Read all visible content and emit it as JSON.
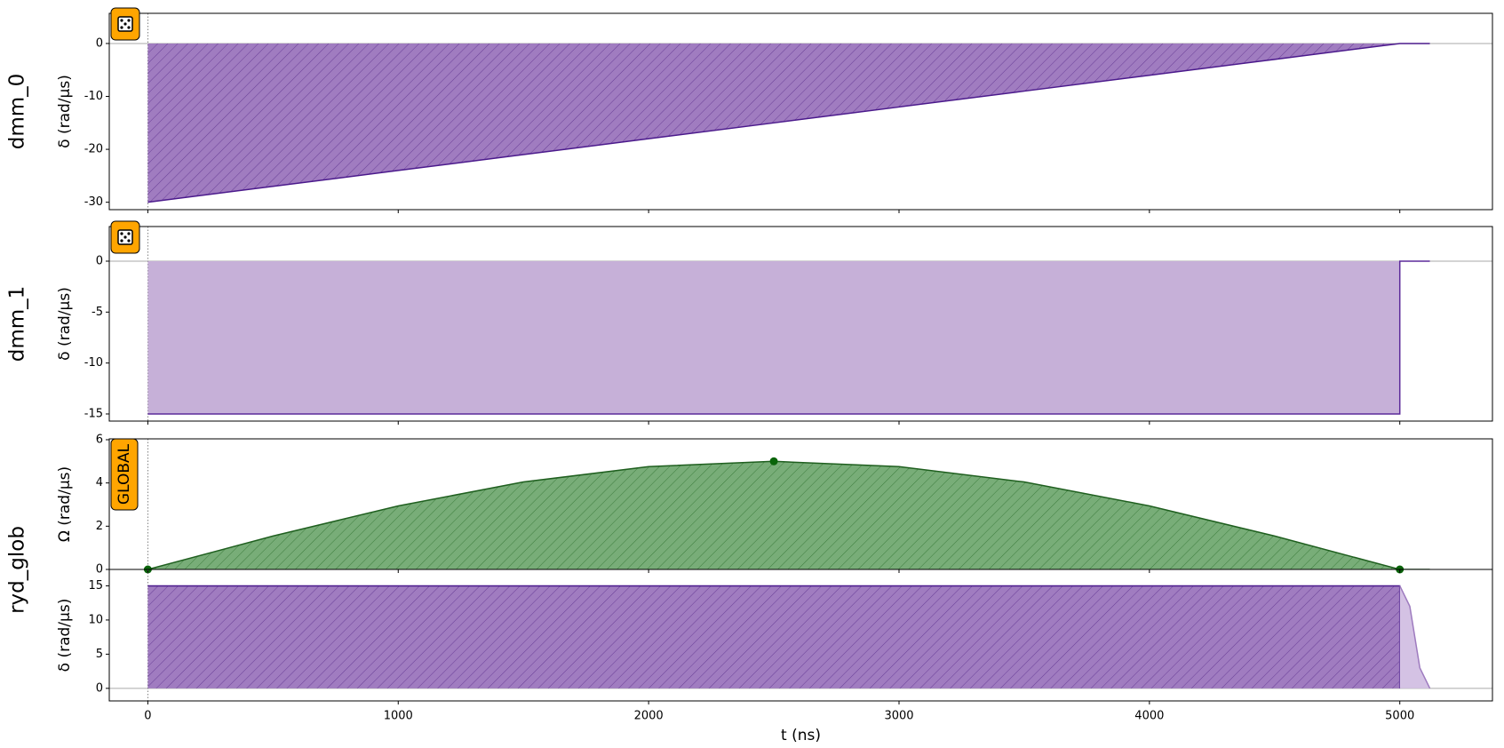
{
  "chart_data": [
    {
      "type": "area",
      "row_label": "dmm_0",
      "ylabel": "δ (rad/µs)",
      "badge": "dice",
      "hatch": true,
      "ylim": [
        -31.4,
        5.7
      ],
      "yticks": [
        -30,
        -20,
        -10,
        0
      ],
      "series": [
        {
          "color": "#4b1a8c",
          "fill": "#a07cc0",
          "x": [
            0,
            500,
            1000,
            1500,
            2000,
            2500,
            3000,
            3500,
            4000,
            4500,
            5000,
            5120
          ],
          "values": [
            -30,
            -27,
            -24,
            -21,
            -18,
            -15,
            -12,
            -9,
            -6,
            -3,
            0,
            0
          ]
        }
      ]
    },
    {
      "type": "area",
      "row_label": "dmm_1",
      "ylabel": "δ (rad/µs)",
      "badge": "dice",
      "hatch": false,
      "ylim": [
        -15.7,
        3.4
      ],
      "yticks": [
        -15,
        -10,
        -5,
        0
      ],
      "series": [
        {
          "color": "#5b2a9a",
          "fill": "#c6b0d8",
          "x": [
            0,
            5000,
            5000,
            5120
          ],
          "values": [
            -15,
            -15,
            0,
            0
          ]
        }
      ]
    },
    {
      "type": "area",
      "row_label": "ryd_glob",
      "ylabel": "Ω (rad/µs)",
      "badge_text": "GLOBAL",
      "hatch": true,
      "ylim": [
        0,
        6.04
      ],
      "yticks": [
        0,
        2,
        4,
        6
      ],
      "series": [
        {
          "color": "#1f5f1f",
          "fill": "#78ad78",
          "x": [
            0,
            500,
            1000,
            1500,
            2000,
            2500,
            3000,
            3500,
            4000,
            4500,
            5000,
            5120
          ],
          "values": [
            0,
            1.545,
            2.939,
            4.045,
            4.755,
            5,
            4.755,
            4.045,
            2.939,
            1.545,
            0,
            0
          ]
        }
      ],
      "points": {
        "color": "#0a640a",
        "x": [
          0,
          2500,
          5000
        ],
        "values": [
          0,
          5,
          0
        ]
      }
    },
    {
      "type": "area",
      "ylabel": "δ (rad/µs)",
      "hatch": true,
      "ylim": [
        -1.84,
        17.4
      ],
      "yticks": [
        0,
        5,
        10,
        15
      ],
      "series": [
        {
          "color": "#4b1a8c",
          "fill": "#a07cc0",
          "x": [
            0,
            5000,
            5000
          ],
          "values": [
            15,
            15,
            0
          ]
        },
        {
          "color": "#9e7bbf",
          "fill": "#d4c2e4",
          "x": [
            5000,
            5040,
            5080,
            5120
          ],
          "values": [
            15,
            12,
            3,
            0
          ]
        }
      ],
      "xlabel": "t (ns)",
      "xlim": [
        -154,
        5370
      ],
      "xticks": [
        0,
        1000,
        2000,
        3000,
        4000,
        5000
      ]
    }
  ]
}
